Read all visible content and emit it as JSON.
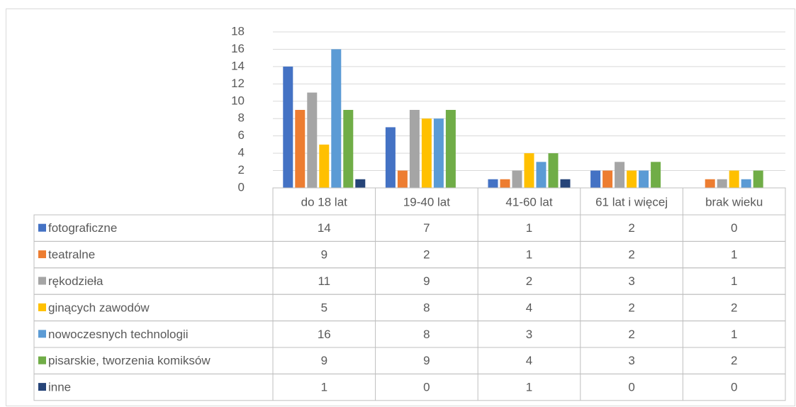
{
  "chart_data": {
    "type": "bar",
    "categories": [
      "do 18 lat",
      "19-40 lat",
      "41-60 lat",
      "61 lat i więcej",
      "brak wieku"
    ],
    "series": [
      {
        "name": "fotograficzne",
        "color": "#4472c4",
        "values": [
          14,
          7,
          1,
          2,
          0
        ]
      },
      {
        "name": "teatralne",
        "color": "#ed7d31",
        "values": [
          9,
          2,
          1,
          2,
          1
        ]
      },
      {
        "name": "rękodzieła",
        "color": "#a5a5a5",
        "values": [
          11,
          9,
          2,
          3,
          1
        ]
      },
      {
        "name": "ginących zawodów",
        "color": "#ffc000",
        "values": [
          5,
          8,
          4,
          2,
          2
        ]
      },
      {
        "name": "nowoczesnych technologii",
        "color": "#5b9bd5",
        "values": [
          16,
          8,
          3,
          2,
          1
        ]
      },
      {
        "name": "pisarskie, tworzenia komiksów",
        "color": "#70ad47",
        "values": [
          9,
          9,
          4,
          3,
          2
        ]
      },
      {
        "name": "inne",
        "color": "#264478",
        "values": [
          1,
          0,
          1,
          0,
          0
        ]
      }
    ],
    "ylim": [
      0,
      18
    ],
    "yticks": [
      0,
      2,
      4,
      6,
      8,
      10,
      12,
      14,
      16,
      18
    ],
    "grid": true,
    "data_table": true
  }
}
